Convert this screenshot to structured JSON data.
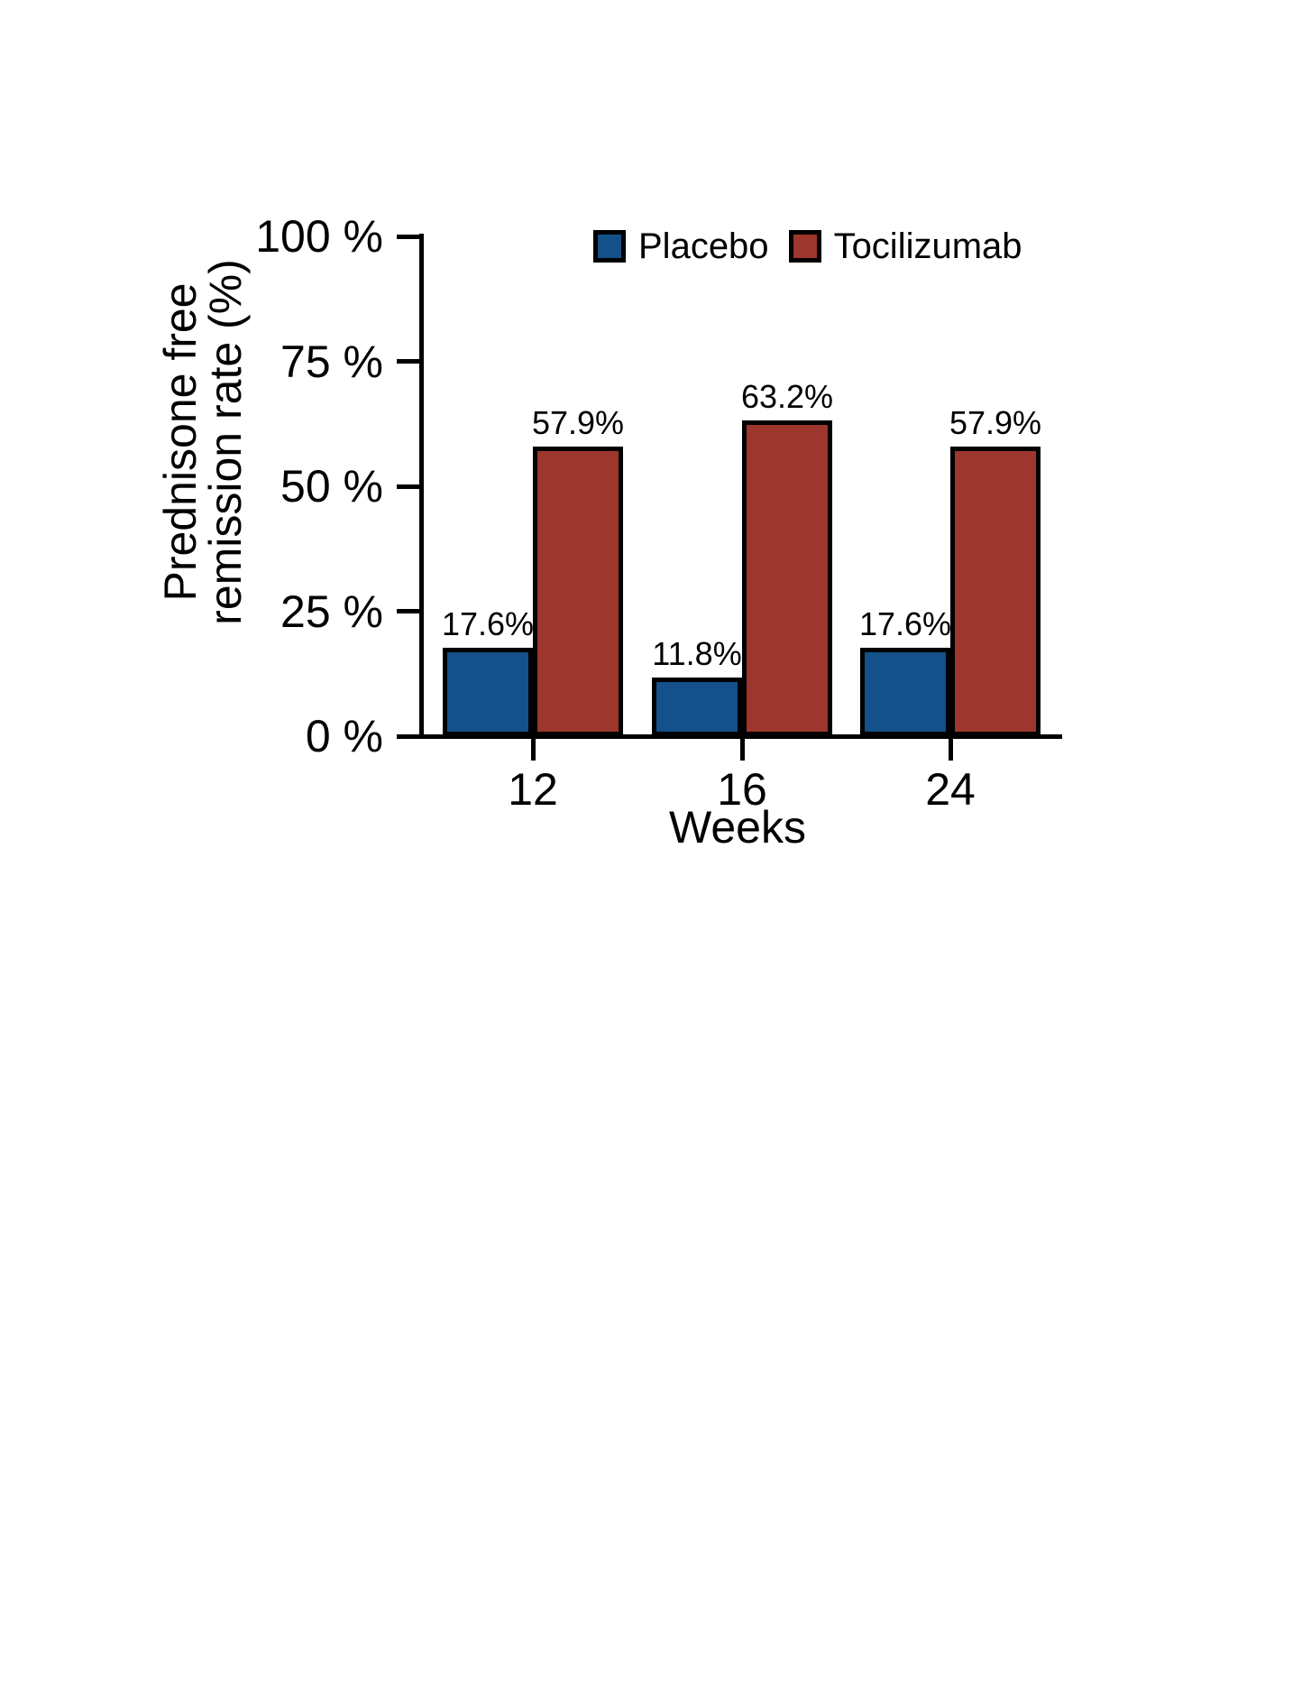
{
  "chart_data": {
    "type": "bar",
    "title": "",
    "xlabel": "Weeks",
    "ylabel_lines": [
      "Prednisone free",
      "remission rate (%)"
    ],
    "ylabel_text": "Prednisone free remission rate (%)",
    "categories": [
      "12",
      "16",
      "24"
    ],
    "series": [
      {
        "name": "Placebo",
        "color": "#14508A",
        "values": [
          17.6,
          11.8,
          17.6
        ],
        "value_labels": [
          "17.6%",
          "11.8%",
          "17.6%"
        ]
      },
      {
        "name": "Tocilizumab",
        "color": "#9D362C",
        "values": [
          57.9,
          63.2,
          57.9
        ],
        "value_labels": [
          "57.9%",
          "63.2%",
          "57.9%"
        ]
      }
    ],
    "y_ticks": [
      {
        "value": 0,
        "label": "0 %"
      },
      {
        "value": 25,
        "label": "25 %"
      },
      {
        "value": 50,
        "label": "50 %"
      },
      {
        "value": 75,
        "label": "75 %"
      },
      {
        "value": 100,
        "label": "100 %"
      }
    ],
    "ylim": [
      0,
      100
    ],
    "grid": false,
    "legend_position": "top",
    "axis_color": "#000000",
    "background_color": "#ffffff"
  }
}
